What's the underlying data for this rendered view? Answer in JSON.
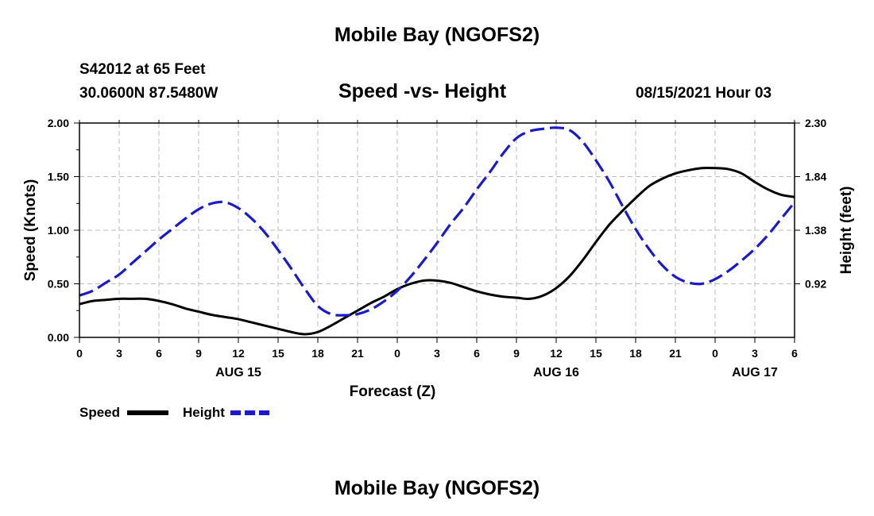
{
  "page": {
    "title_top": "Mobile Bay (NGOFS2)",
    "title_bottom": "Mobile Bay (NGOFS2)",
    "station": "S42012 at 65 Feet",
    "coords": "30.0600N  87.5480W",
    "datetime": "08/15/2021 Hour 03"
  },
  "colors": {
    "speed": "#000000",
    "height": "#1a1acc",
    "grid": "#bdbdbd"
  },
  "chart_data": {
    "type": "line",
    "title": "Speed -vs- Height",
    "xlabel": "Forecast (Z)",
    "ylabel": "Speed (Knots)",
    "y2label": "Height (feet)",
    "x_tick_labels": [
      "0",
      "3",
      "6",
      "9",
      "12",
      "15",
      "18",
      "21",
      "0",
      "3",
      "6",
      "9",
      "12",
      "15",
      "18",
      "21",
      "0",
      "3",
      "6"
    ],
    "date_labels": [
      {
        "label": "AUG 15",
        "hour": 12
      },
      {
        "label": "AUG 16",
        "hour": 36
      },
      {
        "label": "AUG 17",
        "hour": 51
      }
    ],
    "xlim": [
      0,
      54
    ],
    "ylim": [
      0,
      2.0
    ],
    "y_ticks": [
      "0.00",
      "0.50",
      "1.00",
      "1.50",
      "2.00"
    ],
    "y2lim": [
      0.46,
      2.3
    ],
    "y2_ticks": [
      "0.92",
      "1.38",
      "1.84",
      "2.30"
    ],
    "grid": true,
    "legend": "bottom-left",
    "series": [
      {
        "name": "Speed",
        "axis": "left",
        "style": "solid",
        "x": [
          0,
          1,
          2,
          3,
          4,
          5,
          6,
          7,
          8,
          9,
          10,
          11,
          12,
          13,
          14,
          15,
          16,
          17,
          18,
          19,
          20,
          21,
          22,
          23,
          24,
          25,
          26,
          27,
          28,
          29,
          30,
          31,
          32,
          33,
          34,
          35,
          36,
          37,
          38,
          39,
          40,
          41,
          42,
          43,
          44,
          45,
          46,
          47,
          48,
          49,
          50,
          51,
          52,
          53,
          54
        ],
        "values": [
          0.31,
          0.34,
          0.35,
          0.36,
          0.36,
          0.36,
          0.34,
          0.31,
          0.27,
          0.24,
          0.21,
          0.19,
          0.17,
          0.14,
          0.11,
          0.08,
          0.05,
          0.03,
          0.05,
          0.11,
          0.18,
          0.25,
          0.32,
          0.38,
          0.45,
          0.5,
          0.53,
          0.53,
          0.51,
          0.47,
          0.43,
          0.4,
          0.38,
          0.37,
          0.36,
          0.39,
          0.46,
          0.57,
          0.72,
          0.89,
          1.05,
          1.18,
          1.3,
          1.41,
          1.48,
          1.53,
          1.56,
          1.58,
          1.58,
          1.57,
          1.53,
          1.45,
          1.38,
          1.33,
          1.31
        ]
      },
      {
        "name": "Height",
        "axis": "right",
        "style": "dashed",
        "x": [
          0,
          1,
          2,
          3,
          4,
          5,
          6,
          7,
          8,
          9,
          10,
          11,
          12,
          13,
          14,
          15,
          16,
          17,
          18,
          19,
          20,
          21,
          22,
          23,
          24,
          25,
          26,
          27,
          28,
          29,
          30,
          31,
          32,
          33,
          34,
          35,
          36,
          37,
          38,
          39,
          40,
          41,
          42,
          43,
          44,
          45,
          46,
          47,
          48,
          49,
          50,
          51,
          52,
          53,
          54
        ],
        "values": [
          0.82,
          0.86,
          0.93,
          1.0,
          1.1,
          1.2,
          1.3,
          1.39,
          1.48,
          1.56,
          1.61,
          1.62,
          1.57,
          1.48,
          1.36,
          1.21,
          1.05,
          0.88,
          0.73,
          0.66,
          0.65,
          0.66,
          0.7,
          0.77,
          0.86,
          0.98,
          1.12,
          1.27,
          1.43,
          1.57,
          1.73,
          1.88,
          2.04,
          2.17,
          2.23,
          2.25,
          2.26,
          2.24,
          2.14,
          1.98,
          1.8,
          1.59,
          1.39,
          1.22,
          1.08,
          0.98,
          0.93,
          0.92,
          0.96,
          1.03,
          1.12,
          1.22,
          1.34,
          1.48,
          1.62
        ]
      }
    ]
  }
}
